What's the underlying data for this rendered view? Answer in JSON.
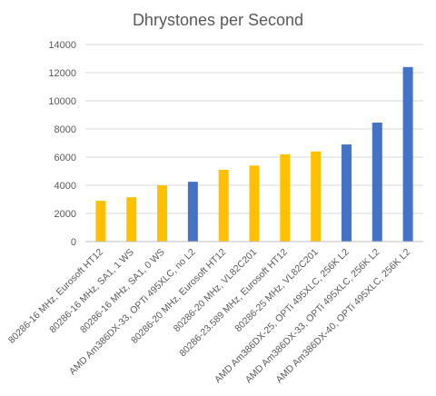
{
  "chart_data": {
    "type": "bar",
    "title": "Dhrystones per Second",
    "xlabel": "",
    "ylabel": "",
    "ylim": [
      0,
      14000
    ],
    "yticks": [
      0,
      2000,
      4000,
      6000,
      8000,
      10000,
      12000,
      14000
    ],
    "grid": true,
    "legend": "none",
    "categories": [
      "80286-16 MHz, Eurosoft HT12",
      "80286-16 MHz, SA1, 1 WS",
      "80286-16 MHz, SA1, 0 WS",
      "AMD Am386DX-33, OPTi 495XLC, no L2",
      "80286-20 MHz, Eurosoft HT12",
      "80286-20 MHz, VL82C201",
      "80286-23.589 MHz, Eurosoft HT12",
      "80286-25 MHz, VL82C201",
      "AMD Am386DX-25, OPTi 495XLC, 256K L2",
      "AMD Am386DX-33, OPTi 495XLC, 256K L2",
      "AMD Am386DX-40, OPTi 495XLC, 256K L2"
    ],
    "values": [
      2900,
      3150,
      4000,
      4250,
      5100,
      5400,
      6200,
      6400,
      6900,
      8450,
      12400
    ],
    "bar_colors": [
      "#ffc000",
      "#ffc000",
      "#ffc000",
      "#4472c4",
      "#ffc000",
      "#ffc000",
      "#ffc000",
      "#ffc000",
      "#4472c4",
      "#4472c4",
      "#4472c4"
    ]
  }
}
